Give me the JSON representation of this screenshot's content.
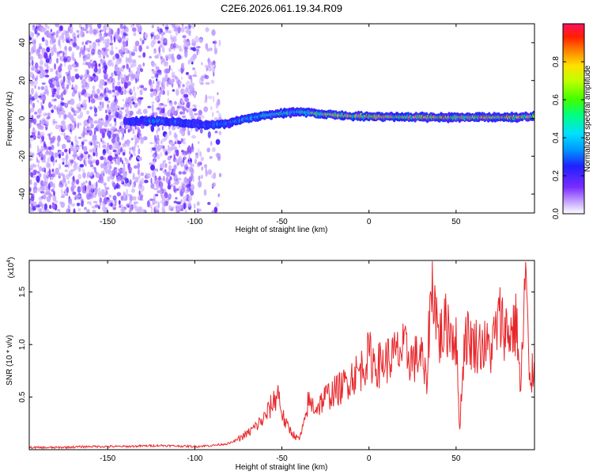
{
  "title": "C2E6.2026.061.19.34.R09",
  "colors": {
    "snr_line": "#e8262a",
    "spectrum_dots": "#8a3cff",
    "axis": "#000000"
  },
  "chart_data": [
    {
      "type": "heatmap",
      "xlabel": "Height of straight line (km)",
      "ylabel": "Frequency (Hz)",
      "xlim": [
        -195,
        95
      ],
      "ylim": [
        -50,
        50
      ],
      "x_ticks": [
        -150,
        -100,
        -50,
        0,
        50
      ],
      "x_tick_labels": [
        "-150",
        "-100",
        "-50",
        "0",
        "50"
      ],
      "y_ticks": [
        -40,
        -20,
        0,
        20,
        40
      ],
      "y_tick_labels": [
        "-40",
        "-20",
        "0",
        "20",
        "40"
      ],
      "grid": false,
      "colorbar": {
        "label": "Normalized spectral amplitude",
        "range": [
          0,
          1
        ],
        "ticks": [
          0.0,
          0.2,
          0.4,
          0.6,
          0.8
        ],
        "tick_labels": [
          "0.0",
          "0.2",
          "0.4",
          "0.6",
          "0.8"
        ],
        "colormap": "rainbow (violet-blue-cyan-green-yellow-red)"
      },
      "ridge": {
        "x": [
          -140,
          -130,
          -120,
          -110,
          -100,
          -90,
          -80,
          -70,
          -60,
          -50,
          -40,
          -30,
          -20,
          -10,
          0,
          10,
          20,
          30,
          40,
          50,
          60,
          70,
          80,
          90,
          95
        ],
        "frequency": [
          -1.5,
          -1.5,
          -1.5,
          -2,
          -3,
          -3.5,
          -2.5,
          0,
          1.5,
          2.5,
          3.5,
          2.5,
          1.8,
          1.2,
          1.0,
          0.8,
          0.6,
          0.6,
          0.5,
          0.5,
          0.5,
          0.5,
          0.6,
          0.8,
          1.0
        ],
        "amplitude": [
          0.3,
          0.3,
          0.45,
          0.35,
          0.3,
          0.35,
          0.4,
          0.45,
          0.5,
          0.55,
          0.55,
          0.7,
          0.8,
          0.8,
          0.9,
          0.85,
          0.8,
          0.85,
          0.9,
          0.85,
          0.95,
          0.9,
          0.9,
          0.8,
          0.7
        ]
      },
      "noise_region": {
        "x_from": -195,
        "x_to": -85
      }
    },
    {
      "type": "line",
      "xlabel": "Height of straight line (km)",
      "ylabel": "SNR (10 * v/v)",
      "y_scale_label": "(x10",
      "y_scale_exponent": "4",
      "y_scale_suffix": ")",
      "xlim": [
        -195,
        95
      ],
      "ylim": [
        0,
        1.8
      ],
      "x_ticks": [
        -150,
        -100,
        -50,
        0,
        50
      ],
      "x_tick_labels": [
        "-150",
        "-100",
        "-50",
        "0",
        "50"
      ],
      "y_ticks": [
        0.5,
        1.0,
        1.5
      ],
      "y_tick_labels": [
        "0.5",
        "1.0",
        "1.5"
      ],
      "grid": false,
      "series": [
        {
          "x": [
            -195,
            -180,
            -160,
            -140,
            -120,
            -100,
            -90,
            -80,
            -75,
            -70,
            -65,
            -60,
            -55,
            -52,
            -50,
            -48,
            -45,
            -42,
            -40,
            -37,
            -35,
            -30,
            -25,
            -20,
            -15,
            -10,
            -5,
            0,
            5,
            10,
            15,
            20,
            25,
            30,
            33,
            35,
            37,
            40,
            45,
            50,
            52,
            55,
            60,
            65,
            70,
            75,
            80,
            85,
            87,
            90,
            92,
            95
          ],
          "values": [
            0.02,
            0.02,
            0.03,
            0.03,
            0.04,
            0.03,
            0.04,
            0.06,
            0.1,
            0.15,
            0.22,
            0.3,
            0.45,
            0.55,
            0.35,
            0.25,
            0.18,
            0.12,
            0.1,
            0.25,
            0.45,
            0.4,
            0.5,
            0.55,
            0.6,
            0.7,
            0.75,
            0.9,
            0.8,
            0.85,
            0.9,
            0.95,
            0.85,
            0.9,
            0.6,
            1.35,
            1.6,
            1.05,
            1.2,
            1.05,
            0.2,
            1.1,
            1.0,
            1.0,
            0.95,
            1.25,
            1.1,
            1.2,
            0.5,
            1.75,
            0.6,
            0.8
          ]
        }
      ]
    }
  ]
}
